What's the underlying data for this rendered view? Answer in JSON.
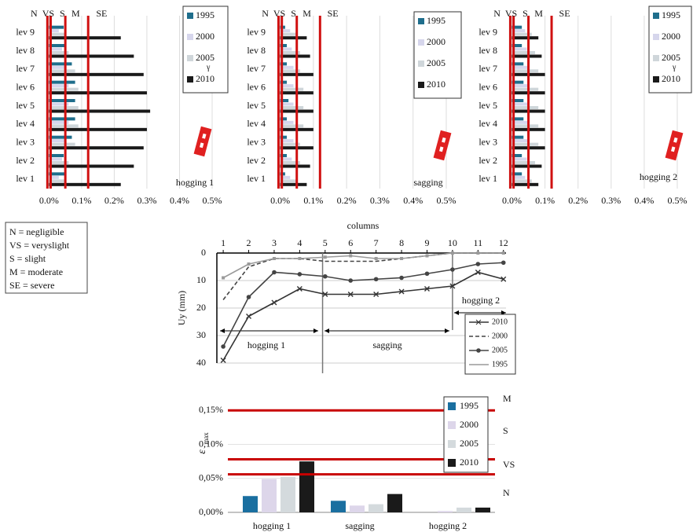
{
  "chart_data": [
    {
      "type": "hbar",
      "label": "hogging 1",
      "zones": [
        "N",
        "VS",
        "S",
        "M",
        "SE"
      ],
      "thresholds": [
        -0.005,
        0.005,
        0.05,
        0.12
      ],
      "threshold_color": "#d01010",
      "categories": [
        "lev 1",
        "lev 2",
        "lev 3",
        "lev 4",
        "lev 5",
        "lev 6",
        "lev 7",
        "lev 8",
        "lev 9"
      ],
      "series": [
        {
          "name": "1995",
          "color": "#1f6e8c",
          "values": [
            0.05,
            0.045,
            0.07,
            0.08,
            0.08,
            0.08,
            0.07,
            0.05,
            0.045
          ]
        },
        {
          "name": "2000",
          "color": "#d6d6ec",
          "values": [
            0.03,
            0.04,
            0.05,
            0.06,
            0.06,
            0.06,
            0.05,
            0.04,
            0.03
          ]
        },
        {
          "name": "2005",
          "color": "#cfd6da",
          "values": [
            0.05,
            0.06,
            0.08,
            0.09,
            0.09,
            0.09,
            0.08,
            0.06,
            0.05
          ]
        },
        {
          "name": "2010",
          "color": "#1a1a1a",
          "values": [
            0.22,
            0.26,
            0.29,
            0.3,
            0.31,
            0.3,
            0.29,
            0.26,
            0.22
          ]
        }
      ],
      "legend_note": "γ",
      "xlim": [
        -0.025,
        0.5
      ],
      "xticks": [
        {
          "value": 0,
          "label": "0.0%"
        },
        {
          "value": 0.1,
          "label": "0.1%"
        },
        {
          "value": 0.2,
          "label": "0.2%"
        },
        {
          "value": 0.3,
          "label": "0.3%"
        },
        {
          "value": 0.4,
          "label": "0.4%"
        },
        {
          "value": 0.5,
          "label": "0.5%"
        }
      ],
      "grid": true
    },
    {
      "type": "hbar",
      "label": "sagging",
      "zones": [
        "N",
        "VS",
        "S",
        "M",
        "SE"
      ],
      "thresholds": [
        -0.005,
        0.005,
        0.05,
        0.12
      ],
      "threshold_color": "#d01010",
      "categories": [
        "lev 1",
        "lev 2",
        "lev 3",
        "lev 4",
        "lev 5",
        "lev 6",
        "lev 7",
        "lev 8",
        "lev 9"
      ],
      "series": [
        {
          "name": "1995",
          "color": "#1f6e8c",
          "values": [
            0.015,
            0.02,
            0.02,
            0.02,
            0.025,
            0.02,
            0.02,
            0.02,
            0.015
          ]
        },
        {
          "name": "2000",
          "color": "#d6d6ec",
          "values": [
            0.03,
            0.035,
            0.04,
            0.04,
            0.04,
            0.04,
            0.04,
            0.035,
            0.03
          ]
        },
        {
          "name": "2005",
          "color": "#cfd6da",
          "values": [
            0.05,
            0.06,
            0.06,
            0.07,
            0.07,
            0.07,
            0.06,
            0.06,
            0.05
          ]
        },
        {
          "name": "2010",
          "color": "#1a1a1a",
          "values": [
            0.08,
            0.09,
            0.1,
            0.1,
            0.1,
            0.1,
            0.1,
            0.09,
            0.08
          ]
        }
      ],
      "xlim": [
        -0.025,
        0.5
      ],
      "xticks": [
        {
          "value": 0,
          "label": "0.0%"
        },
        {
          "value": 0.1,
          "label": "0.1%"
        },
        {
          "value": 0.2,
          "label": "0.2%"
        },
        {
          "value": 0.3,
          "label": "0.3%"
        },
        {
          "value": 0.4,
          "label": "0.4%"
        },
        {
          "value": 0.5,
          "label": "0.5%"
        }
      ],
      "grid": true
    },
    {
      "type": "hbar",
      "label": "hogging 2",
      "zones": [
        "N",
        "VS",
        "S",
        "M",
        "SE"
      ],
      "thresholds": [
        -0.005,
        0.005,
        0.05,
        0.12
      ],
      "threshold_color": "#d01010",
      "categories": [
        "lev 1",
        "lev 2",
        "lev 3",
        "lev 4",
        "lev 5",
        "lev 6",
        "lev 7",
        "lev 8",
        "lev 9"
      ],
      "series": [
        {
          "name": "1995",
          "color": "#1f6e8c",
          "values": [
            0.03,
            0.03,
            0.035,
            0.035,
            0.035,
            0.035,
            0.035,
            0.03,
            0.03
          ]
        },
        {
          "name": "2000",
          "color": "#d6d6ec",
          "values": [
            0.04,
            0.045,
            0.05,
            0.05,
            0.05,
            0.05,
            0.05,
            0.045,
            0.04
          ]
        },
        {
          "name": "2005",
          "color": "#cfd6da",
          "values": [
            0.06,
            0.07,
            0.08,
            0.08,
            0.08,
            0.08,
            0.08,
            0.07,
            0.06
          ]
        },
        {
          "name": "2010",
          "color": "#1a1a1a",
          "values": [
            0.08,
            0.09,
            0.1,
            0.1,
            0.1,
            0.1,
            0.1,
            0.09,
            0.08
          ]
        }
      ],
      "legend_note": "γ",
      "xlim": [
        -0.025,
        0.5
      ],
      "xticks": [
        {
          "value": 0,
          "label": "0.0%"
        },
        {
          "value": 0.1,
          "label": "0.1%"
        },
        {
          "value": 0.2,
          "label": "0.2%"
        },
        {
          "value": 0.3,
          "label": "0.3%"
        },
        {
          "value": 0.4,
          "label": "0.4%"
        },
        {
          "value": 0.5,
          "label": "0.5%"
        }
      ],
      "grid": true
    },
    {
      "type": "line",
      "x_label": "columns",
      "y_label": "Uy (mm)",
      "x": [
        1,
        2,
        3,
        4,
        5,
        6,
        7,
        8,
        9,
        10,
        11,
        12
      ],
      "series": [
        {
          "name": "2010",
          "color": "#333333",
          "marker": "x",
          "values": [
            39,
            23,
            18,
            13,
            15,
            15,
            15,
            14,
            13,
            12,
            7,
            9.5
          ]
        },
        {
          "name": "2000",
          "color": "#444444",
          "dash": true,
          "marker": "none",
          "values": [
            17,
            5,
            2,
            2,
            3,
            3,
            3,
            2,
            1,
            0,
            0,
            0
          ]
        },
        {
          "name": "2005",
          "color": "#444444",
          "marker": "dot",
          "values": [
            34,
            16,
            7,
            7.7,
            8.5,
            10,
            9.5,
            9,
            7.5,
            6,
            4,
            3.5
          ]
        },
        {
          "name": "1995",
          "color": "#9a9a9a",
          "marker": "square",
          "values": [
            9,
            4,
            2,
            2,
            1.5,
            1,
            2,
            2,
            1,
            0,
            0,
            0
          ]
        }
      ],
      "annotations": [
        "hogging 1",
        "sagging",
        "hogging 2"
      ],
      "vlines": [
        4.9,
        10
      ],
      "xlim": [
        0.75,
        12.1
      ],
      "xticks": [
        1,
        2,
        3,
        4,
        5,
        6,
        7,
        8,
        9,
        10,
        11,
        12
      ],
      "ylim": [
        40,
        0
      ],
      "yticks": [
        0,
        10,
        20,
        30,
        40
      ],
      "grid": true
    },
    {
      "type": "bar",
      "y_label": "ε",
      "y_label_sub": "max",
      "categories": [
        "hogging 1",
        "sagging",
        "hogging 2"
      ],
      "series": [
        {
          "name": "1995",
          "color": "#1a6fa0",
          "values": [
            0.024,
            0.017,
            0
          ]
        },
        {
          "name": "2000",
          "color": "#ddd6ea",
          "values": [
            0.049,
            0.01,
            0.002
          ]
        },
        {
          "name": "2005",
          "color": "#d4dadd",
          "values": [
            0.052,
            0.012,
            0.007
          ]
        },
        {
          "name": "2010",
          "color": "#1a1a1a",
          "values": [
            0.075,
            0.027,
            0.007
          ]
        }
      ],
      "thresholds": [
        0.15,
        0.078,
        0.056
      ],
      "threshold_color": "#c80000",
      "threshold_labels": [
        "M",
        "S",
        "VS",
        "N"
      ],
      "ylim": [
        0,
        0.17
      ],
      "yticks": [
        {
          "value": 0,
          "label": "0,00%"
        },
        {
          "value": 0.05,
          "label": "0,05%"
        },
        {
          "value": 0.1,
          "label": "0,10%"
        },
        {
          "value": 0.15,
          "label": "0,15%"
        }
      ],
      "grid": true
    }
  ],
  "legend_notes": [
    "N = negligible",
    "VS = veryslight",
    "S = slight",
    "M = moderate",
    "SE = severe"
  ]
}
